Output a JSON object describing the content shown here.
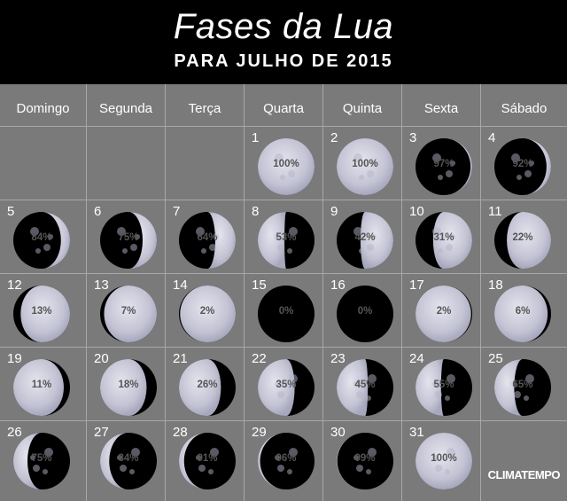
{
  "header": {
    "title": "Fases da Lua",
    "subtitle": "PARA JULHO DE 2015"
  },
  "weekdays": [
    "Domingo",
    "Segunda",
    "Terça",
    "Quarta",
    "Quinta",
    "Sexta",
    "Sábado"
  ],
  "start_offset": 3,
  "days": [
    {
      "day": "1",
      "pct": "100%",
      "illum": 1.0,
      "lit": "right"
    },
    {
      "day": "2",
      "pct": "100%",
      "illum": 1.0,
      "lit": "right"
    },
    {
      "day": "3",
      "pct": "97%",
      "illum": 0.97,
      "lit": "right"
    },
    {
      "day": "4",
      "pct": "92%",
      "illum": 0.92,
      "lit": "right"
    },
    {
      "day": "5",
      "pct": "84%",
      "illum": 0.84,
      "lit": "right"
    },
    {
      "day": "6",
      "pct": "75%",
      "illum": 0.75,
      "lit": "right"
    },
    {
      "day": "7",
      "pct": "64%",
      "illum": 0.64,
      "lit": "right"
    },
    {
      "day": "8",
      "pct": "53%",
      "illum": 0.53,
      "lit": "left"
    },
    {
      "day": "9",
      "pct": "42%",
      "illum": 0.42,
      "lit": "right"
    },
    {
      "day": "10",
      "pct": "31%",
      "illum": 0.31,
      "lit": "right"
    },
    {
      "day": "11",
      "pct": "22%",
      "illum": 0.22,
      "lit": "right"
    },
    {
      "day": "12",
      "pct": "13%",
      "illum": 0.13,
      "lit": "right"
    },
    {
      "day": "13",
      "pct": "7%",
      "illum": 0.07,
      "lit": "right"
    },
    {
      "day": "14",
      "pct": "2%",
      "illum": 0.02,
      "lit": "right"
    },
    {
      "day": "15",
      "pct": "0%",
      "illum": 0.0,
      "lit": "right"
    },
    {
      "day": "16",
      "pct": "0%",
      "illum": 0.0,
      "lit": "left"
    },
    {
      "day": "17",
      "pct": "2%",
      "illum": 0.02,
      "lit": "left"
    },
    {
      "day": "18",
      "pct": "6%",
      "illum": 0.06,
      "lit": "left"
    },
    {
      "day": "19",
      "pct": "11%",
      "illum": 0.11,
      "lit": "left"
    },
    {
      "day": "20",
      "pct": "18%",
      "illum": 0.18,
      "lit": "left"
    },
    {
      "day": "21",
      "pct": "26%",
      "illum": 0.26,
      "lit": "left"
    },
    {
      "day": "22",
      "pct": "35%",
      "illum": 0.35,
      "lit": "left"
    },
    {
      "day": "23",
      "pct": "45%",
      "illum": 0.45,
      "lit": "left"
    },
    {
      "day": "24",
      "pct": "55%",
      "illum": 0.55,
      "lit": "left"
    },
    {
      "day": "25",
      "pct": "65%",
      "illum": 0.65,
      "lit": "left"
    },
    {
      "day": "26",
      "pct": "75%",
      "illum": 0.75,
      "lit": "left"
    },
    {
      "day": "27",
      "pct": "84%",
      "illum": 0.84,
      "lit": "left"
    },
    {
      "day": "28",
      "pct": "91%",
      "illum": 0.91,
      "lit": "left"
    },
    {
      "day": "29",
      "pct": "96%",
      "illum": 0.96,
      "lit": "left"
    },
    {
      "day": "30",
      "pct": "99%",
      "illum": 0.99,
      "lit": "left"
    },
    {
      "day": "31",
      "pct": "100%",
      "illum": 1.0,
      "lit": "left"
    }
  ],
  "logo": "CLIMATEMPO",
  "colors": {
    "background": "#7a7a7a",
    "header": "#000000",
    "moon_light": "#c9c9d8",
    "moon_dark": "#000000"
  }
}
